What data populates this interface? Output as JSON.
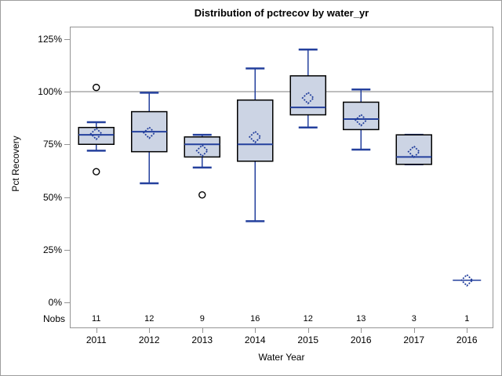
{
  "title": "Distribution of pctrecov by water_yr",
  "nobs_row_label": "Nobs",
  "chart_data": {
    "type": "boxplot",
    "title": "Distribution of pctrecov by water_yr",
    "xlabel": "Water Year",
    "ylabel": "Pct Recovery",
    "ylim": [
      -12,
      131
    ],
    "y_tick_labels": [
      "125%",
      "100%",
      "75%",
      "50%",
      "25%",
      "0%"
    ],
    "y_tick_values": [
      125,
      100,
      75,
      50,
      25,
      0
    ],
    "reference_line": 100,
    "grid": "off",
    "legend": "none",
    "categories": [
      "2011",
      "2012",
      "2013",
      "2014",
      "2015",
      "2016",
      "2017",
      "2016"
    ],
    "nobs": [
      11,
      12,
      9,
      16,
      12,
      13,
      3,
      1
    ],
    "boxes": [
      {
        "year": "2011",
        "n": 11,
        "whisker_low": 72,
        "q1": 75,
        "median": 79.5,
        "q3": 83,
        "whisker_high": 85.5,
        "mean": 80,
        "outliers": [
          102,
          62
        ]
      },
      {
        "year": "2012",
        "n": 12,
        "whisker_low": 56.5,
        "q1": 71.5,
        "median": 81,
        "q3": 90.5,
        "whisker_high": 99.5,
        "mean": 80.5,
        "outliers": []
      },
      {
        "year": "2013",
        "n": 9,
        "whisker_low": 64,
        "q1": 69,
        "median": 75,
        "q3": 78.5,
        "whisker_high": 79.5,
        "mean": 72,
        "outliers": [
          51
        ]
      },
      {
        "year": "2014",
        "n": 16,
        "whisker_low": 38.5,
        "q1": 67,
        "median": 75,
        "q3": 96,
        "whisker_high": 111,
        "mean": 78.5,
        "outliers": []
      },
      {
        "year": "2015",
        "n": 12,
        "whisker_low": 83,
        "q1": 89,
        "median": 92.5,
        "q3": 107.5,
        "whisker_high": 120,
        "mean": 97,
        "outliers": []
      },
      {
        "year": "2016",
        "n": 13,
        "whisker_low": 72.5,
        "q1": 82,
        "median": 87,
        "q3": 95,
        "whisker_high": 101,
        "mean": 86.5,
        "outliers": []
      },
      {
        "year": "2017",
        "n": 3,
        "whisker_low": 65.5,
        "q1": 65.5,
        "median": 69,
        "q3": 79.5,
        "whisker_high": 79.5,
        "mean": 71.5,
        "outliers": []
      },
      {
        "year": "2016",
        "n": 1,
        "whisker_low": 10.5,
        "q1": 10.5,
        "median": 10.5,
        "q3": 10.5,
        "whisker_high": 10.5,
        "mean": 10.5,
        "outliers": []
      }
    ],
    "colors": {
      "box_fill": "#ccd4e4",
      "box_border": "#000000",
      "whisker": "#24409d",
      "median": "#24409d",
      "mean_marker": "#24409d",
      "outlier_stroke": "#000000",
      "reference_line": "#a8a8a8",
      "frame": "#949494"
    }
  }
}
